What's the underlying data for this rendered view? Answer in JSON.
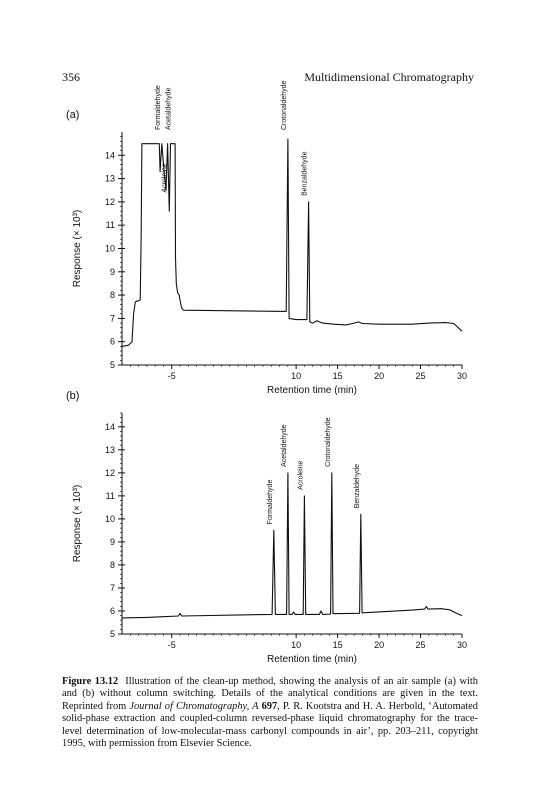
{
  "header": {
    "page_number": "356",
    "running_title": "Multidimensional Chromatography"
  },
  "chart_data": [
    {
      "panel": "(a)",
      "type": "line",
      "xlabel": "Retention time (min)",
      "ylabel": "Response (× 10³)",
      "xlim": [
        -11,
        30
      ],
      "ylim": [
        5,
        15
      ],
      "xticks": [
        -5,
        10,
        15,
        20,
        25,
        30
      ],
      "yticks": [
        5,
        6,
        7,
        8,
        9,
        10,
        11,
        12,
        13,
        14
      ],
      "peaks": [
        {
          "name": "Formaldehyde",
          "x": -6.2
        },
        {
          "name": "Acroleine",
          "x": -5.4
        },
        {
          "name": "Acetaldehyde",
          "x": -4.9
        },
        {
          "name": "Crotonaldehyde",
          "x": 9.0
        },
        {
          "name": "Benzaldehyde",
          "x": 11.5
        }
      ],
      "trace": [
        [
          -11,
          5.8
        ],
        [
          -10.2,
          5.85
        ],
        [
          -9.8,
          6.0
        ],
        [
          -9.6,
          7.2
        ],
        [
          -9.4,
          7.7
        ],
        [
          -9.2,
          7.75
        ],
        [
          -9.0,
          7.75
        ],
        [
          -8.8,
          7.8
        ],
        [
          -8.7,
          10.3
        ],
        [
          -8.6,
          14.5
        ],
        [
          -6.5,
          14.5
        ],
        [
          -6.4,
          13.3
        ],
        [
          -6.2,
          14.5
        ],
        [
          -5.9,
          13.2
        ],
        [
          -5.7,
          12.5
        ],
        [
          -5.5,
          14.5
        ],
        [
          -5.3,
          11.6
        ],
        [
          -5.15,
          14.5
        ],
        [
          -4.6,
          14.5
        ],
        [
          -4.55,
          9.6
        ],
        [
          -4.45,
          8.5
        ],
        [
          -4.3,
          8.1
        ],
        [
          -4.1,
          8.0
        ],
        [
          -4.0,
          7.8
        ],
        [
          -3.9,
          7.6
        ],
        [
          -3.8,
          7.45
        ],
        [
          -3.7,
          7.4
        ],
        [
          -3.6,
          7.35
        ],
        [
          8.8,
          7.3
        ],
        [
          9.0,
          14.7
        ],
        [
          9.15,
          7.0
        ],
        [
          9.5,
          6.98
        ],
        [
          10.0,
          6.95
        ],
        [
          11.3,
          6.95
        ],
        [
          11.5,
          12.0
        ],
        [
          11.65,
          6.85
        ],
        [
          12.0,
          6.8
        ],
        [
          12.5,
          6.9
        ],
        [
          12.8,
          6.85
        ],
        [
          13.2,
          6.8
        ],
        [
          14.5,
          6.75
        ],
        [
          16.0,
          6.72
        ],
        [
          17.0,
          6.8
        ],
        [
          17.5,
          6.85
        ],
        [
          18.0,
          6.78
        ],
        [
          20.0,
          6.75
        ],
        [
          24.0,
          6.75
        ],
        [
          26.0,
          6.8
        ],
        [
          28.0,
          6.82
        ],
        [
          29.0,
          6.78
        ],
        [
          30.0,
          6.45
        ]
      ]
    },
    {
      "panel": "(b)",
      "type": "line",
      "xlabel": "Retention time (min)",
      "ylabel": "Response (× 10³)",
      "xlim": [
        -11,
        30
      ],
      "ylim": [
        5,
        14.6
      ],
      "xticks": [
        -5,
        10,
        15,
        20,
        25,
        30
      ],
      "yticks": [
        5,
        6,
        7,
        8,
        9,
        10,
        11,
        12,
        13,
        14
      ],
      "peaks": [
        {
          "name": "Formaldehyde",
          "x": 7.3
        },
        {
          "name": "Acetaldehyde",
          "x": 9.0
        },
        {
          "name": "Acroleine",
          "x": 11.0
        },
        {
          "name": "Crotonaldehyde",
          "x": 14.3
        },
        {
          "name": "Benzaldehyde",
          "x": 17.8
        }
      ],
      "trace": [
        [
          -11,
          5.7
        ],
        [
          -8.0,
          5.72
        ],
        [
          -6.0,
          5.75
        ],
        [
          -4.2,
          5.78
        ],
        [
          -4.0,
          5.9
        ],
        [
          -3.8,
          5.78
        ],
        [
          7.1,
          5.85
        ],
        [
          7.3,
          9.5
        ],
        [
          7.5,
          5.85
        ],
        [
          8.85,
          5.85
        ],
        [
          9.0,
          12.0
        ],
        [
          9.15,
          5.85
        ],
        [
          9.5,
          5.85
        ],
        [
          9.7,
          5.95
        ],
        [
          9.9,
          5.85
        ],
        [
          10.85,
          5.85
        ],
        [
          11.0,
          11.0
        ],
        [
          11.15,
          5.85
        ],
        [
          12.8,
          5.85
        ],
        [
          13.0,
          6.0
        ],
        [
          13.2,
          5.85
        ],
        [
          14.15,
          5.87
        ],
        [
          14.3,
          12.0
        ],
        [
          14.45,
          5.88
        ],
        [
          17.65,
          5.9
        ],
        [
          17.8,
          10.2
        ],
        [
          17.95,
          5.92
        ],
        [
          20.0,
          5.96
        ],
        [
          24.0,
          6.04
        ],
        [
          25.5,
          6.08
        ],
        [
          25.7,
          6.2
        ],
        [
          25.9,
          6.08
        ],
        [
          27.5,
          6.1
        ],
        [
          28.5,
          6.05
        ],
        [
          29.2,
          5.92
        ],
        [
          30.0,
          5.8
        ]
      ]
    }
  ],
  "caption": {
    "figure_label": "Figure 13.12",
    "text_1": "Illustration of the clean-up method, showing the analysis of an air sample (a) with and (b) without column switching. Details of the analytical conditions are given in the text. Reprinted from ",
    "journal": "Journal of Chromatography, A",
    "volume": "697",
    "text_2": ", P. R. Kootstra and H. A. Herbold, ‘Automated solid-phase extraction and coupled-column reversed-phase liquid chromatography for the trace-level determination of low-molecular-mass carbonyl compounds in air’, pp. 203–211, copyright 1995, with permission from Elsevier Science."
  }
}
